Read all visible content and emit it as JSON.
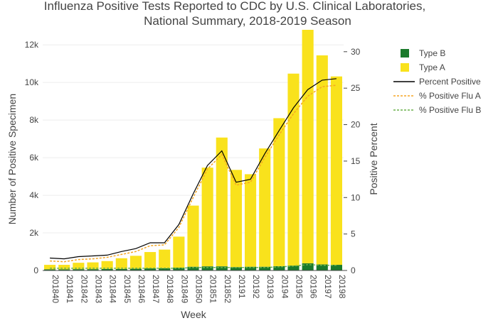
{
  "chart_data": {
    "type": "bar",
    "title": "Influenza Positive Tests Reported to CDC by U.S. Clinical Laboratories,",
    "subtitle": "National Summary, 2018-2019 Season",
    "xlabel": "Week",
    "ylabel": "Number of Positive Specimen",
    "y2label": "Positive Percent",
    "categories": [
      "201840",
      "201841",
      "201842",
      "201843",
      "201844",
      "201845",
      "201846",
      "201847",
      "201848",
      "201849",
      "201850",
      "201851",
      "201852",
      "20191",
      "20192",
      "20193",
      "20194",
      "20195",
      "20196",
      "20197",
      "20198"
    ],
    "ylim": [
      0,
      12800
    ],
    "y_ticks": [
      0,
      2000,
      4000,
      6000,
      8000,
      10000,
      12000
    ],
    "y_tick_labels": [
      "0",
      "2k",
      "4k",
      "6k",
      "8k",
      "10k",
      "12k"
    ],
    "y2lim": [
      0,
      33
    ],
    "y2_ticks": [
      0,
      5,
      10,
      15,
      20,
      25,
      30
    ],
    "y2_tick_labels": [
      "0",
      "5",
      "10",
      "15",
      "20",
      "25",
      "30"
    ],
    "stacked": true,
    "grid": true,
    "legend_position": "top-right",
    "series": [
      {
        "name": "Type B",
        "type": "bar",
        "axis": "left",
        "color": "#1a7a2b",
        "values": [
          60,
          60,
          70,
          70,
          80,
          80,
          90,
          110,
          120,
          150,
          200,
          220,
          220,
          180,
          200,
          200,
          230,
          260,
          380,
          320,
          300
        ]
      },
      {
        "name": "Type A",
        "type": "bar",
        "axis": "left",
        "color": "#f9e21c",
        "values": [
          240,
          240,
          340,
          360,
          420,
          570,
          690,
          870,
          990,
          1650,
          3250,
          5250,
          6850,
          5170,
          4920,
          6290,
          7870,
          10210,
          12420,
          11120,
          10020
        ]
      },
      {
        "name": "Percent Positive",
        "type": "line",
        "axis": "right",
        "color": "#000000",
        "dash": "solid",
        "values": [
          1.7,
          1.6,
          1.9,
          2.0,
          2.1,
          2.6,
          3.0,
          3.8,
          3.8,
          6.3,
          10.5,
          14.4,
          16.4,
          12.1,
          12.5,
          16.0,
          19.2,
          22.3,
          24.8,
          26.1,
          26.3
        ]
      },
      {
        "name": "% Positive Flu A",
        "type": "line",
        "axis": "right",
        "color": "#f5a623",
        "dash": "dashed",
        "values": [
          1.3,
          1.2,
          1.5,
          1.6,
          1.8,
          2.2,
          2.6,
          3.4,
          3.5,
          5.9,
          10.0,
          13.9,
          15.9,
          11.7,
          12.1,
          15.5,
          18.6,
          21.5,
          23.9,
          25.2,
          25.4
        ]
      },
      {
        "name": "% Positive Flu B",
        "type": "line",
        "axis": "right",
        "color": "#6ab04c",
        "dash": "dashed",
        "values": [
          0.3,
          0.3,
          0.3,
          0.3,
          0.3,
          0.3,
          0.3,
          0.3,
          0.3,
          0.3,
          0.4,
          0.4,
          0.4,
          0.4,
          0.4,
          0.4,
          0.5,
          0.6,
          0.8,
          0.7,
          0.7
        ]
      }
    ]
  }
}
